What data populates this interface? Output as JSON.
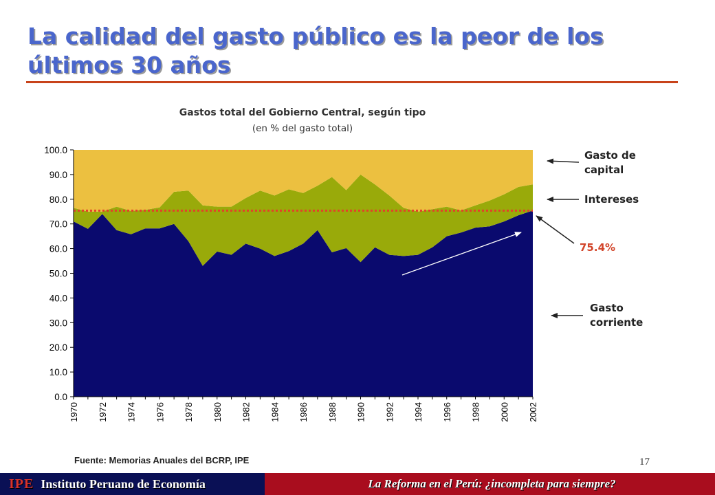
{
  "slide": {
    "title": "La calidad del gasto público es la peor de los últimos 30 años",
    "source": "Fuente: Memorias Anuales del BCRP, IPE",
    "page_number": "17"
  },
  "footer": {
    "logo": "IPE",
    "institute": "Instituto Peruano de Economía",
    "tagline": "La Reforma en el Perú: ¿incompleta para siempre?"
  },
  "annotations": {
    "capital_line1": "Gasto de",
    "capital_line2": "capital",
    "intereses": "Intereses",
    "corriente_line1": "Gasto",
    "corriente_line2": "corriente",
    "highlight": "75.4%"
  },
  "colors": {
    "gasto_corriente": "#0a0a6e",
    "intereses": "#99aa0a",
    "gasto_capital": "#ecc040",
    "reference_line": "#e4402a",
    "title": "#4a66cc",
    "accent_rule": "#c8431a"
  },
  "chart_data": {
    "type": "area",
    "stacked": true,
    "title": "Gastos total del Gobierno Central, según tipo",
    "subtitle": "(en % del gasto total)",
    "ylim": [
      0,
      100
    ],
    "yticks": [
      "0.0",
      "10.0",
      "20.0",
      "30.0",
      "40.0",
      "50.0",
      "60.0",
      "70.0",
      "80.0",
      "90.0",
      "100.0"
    ],
    "x": [
      1970,
      1971,
      1972,
      1973,
      1974,
      1975,
      1976,
      1977,
      1978,
      1979,
      1980,
      1981,
      1982,
      1983,
      1984,
      1985,
      1986,
      1987,
      1988,
      1989,
      1990,
      1991,
      1992,
      1993,
      1994,
      1995,
      1996,
      1997,
      1998,
      1999,
      2000,
      2001,
      2002
    ],
    "xtick_labels": [
      "1970",
      "1972",
      "1974",
      "1976",
      "1978",
      "1980",
      "1982",
      "1984",
      "1986",
      "1988",
      "1990",
      "1992",
      "1994",
      "1996",
      "1998",
      "2000",
      "2002"
    ],
    "series": [
      {
        "name": "Gasto corriente",
        "values": [
          71,
          68,
          74,
          67.5,
          65.8,
          68.2,
          68.2,
          70,
          63,
          53,
          58.8,
          57.5,
          62,
          60,
          57,
          59,
          62,
          67.5,
          58.5,
          60.2,
          54.5,
          60.5,
          57.5,
          57,
          57.5,
          60.5,
          65,
          66.5,
          68.5,
          69,
          71,
          73.5,
          75.4
        ]
      },
      {
        "name": "Intereses",
        "values": [
          5.5,
          7,
          1,
          9.5,
          9.5,
          7.5,
          8.5,
          13,
          20.5,
          24.5,
          18.2,
          19.5,
          18.5,
          23.5,
          24.5,
          25,
          20.5,
          18,
          30.5,
          23.5,
          35.5,
          25.5,
          24,
          19.5,
          17.5,
          15.5,
          12,
          9,
          9,
          10.5,
          11,
          11.5,
          10.6
        ]
      },
      {
        "name": "Gasto de capital",
        "values": [
          23.5,
          25,
          25,
          23,
          24.7,
          24.3,
          23.3,
          17,
          16.5,
          22.5,
          23,
          23,
          19.5,
          16.5,
          18.5,
          16,
          17.5,
          14.5,
          11,
          16.3,
          10,
          14,
          18.5,
          23.5,
          25,
          24,
          23,
          24.5,
          22.5,
          20.5,
          18,
          15,
          14
        ]
      }
    ],
    "reference_line": {
      "value": 75.4,
      "label": "75.4%"
    },
    "grid": false,
    "legend": "none"
  }
}
